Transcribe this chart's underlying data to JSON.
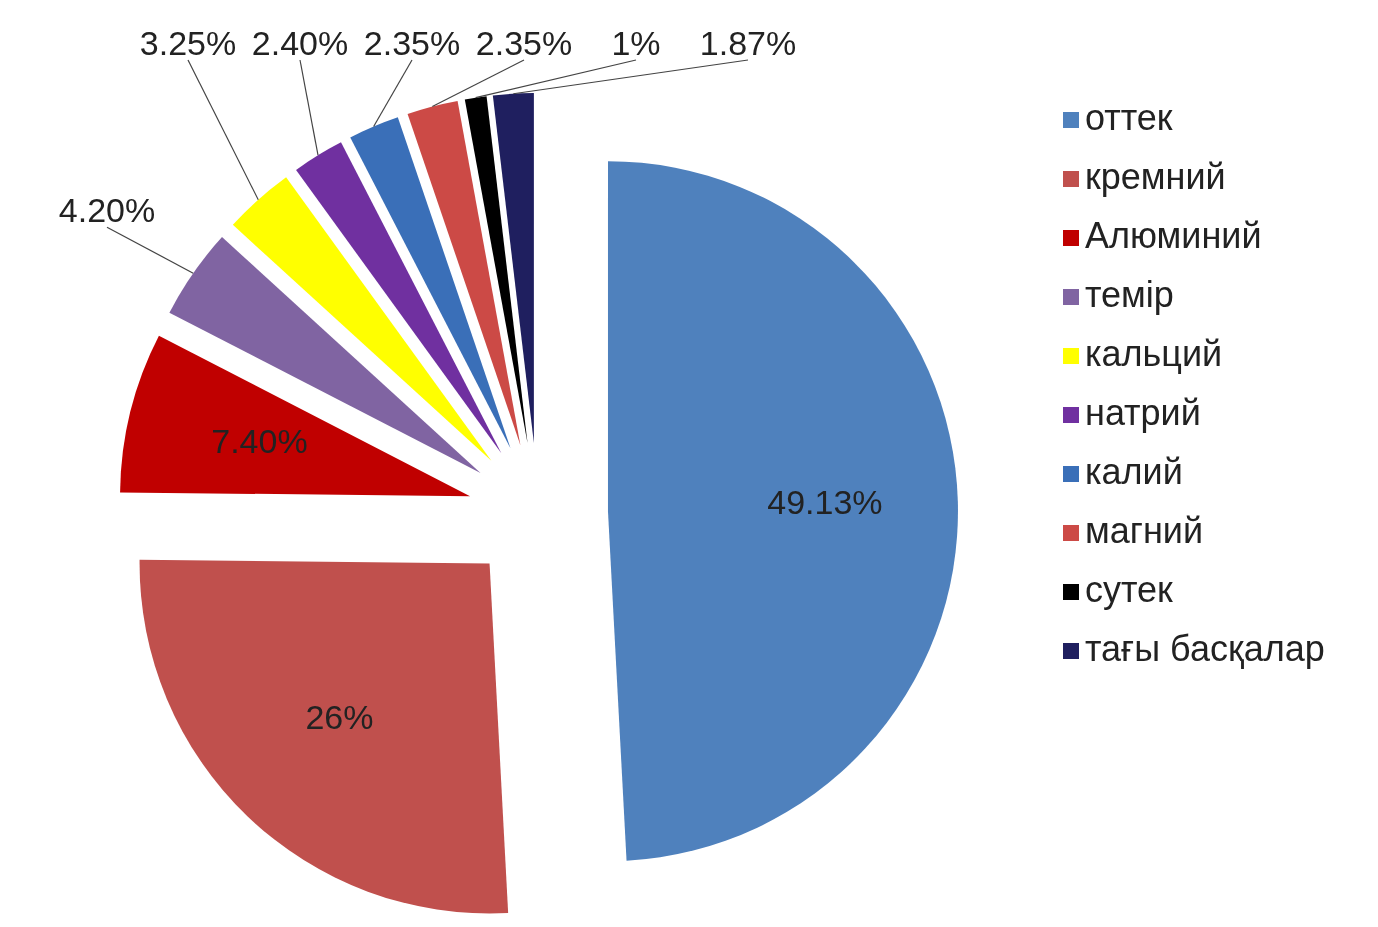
{
  "chart_data": {
    "type": "pie",
    "categories": [
      "оттек",
      "кремний",
      "Алюминий",
      "темір",
      "кальций",
      "натрий",
      "калий",
      "магний",
      "сутек",
      "тағы басқалар"
    ],
    "values": [
      49.13,
      26,
      7.4,
      4.2,
      3.25,
      2.4,
      2.35,
      2.35,
      1,
      1.87
    ],
    "value_labels": [
      "49.13%",
      "26%",
      "7.40%",
      "4.20%",
      "3.25%",
      "2.40%",
      "2.35%",
      "2.35%",
      "1%",
      "1.87%"
    ],
    "colors": [
      "#4f81bd",
      "#c0504d",
      "#c00000",
      "#8064a2",
      "#ffff00",
      "#7030a0",
      "#3a6fb8",
      "#cc4a46",
      "#000000",
      "#1f1f5f"
    ],
    "legend": "right"
  }
}
